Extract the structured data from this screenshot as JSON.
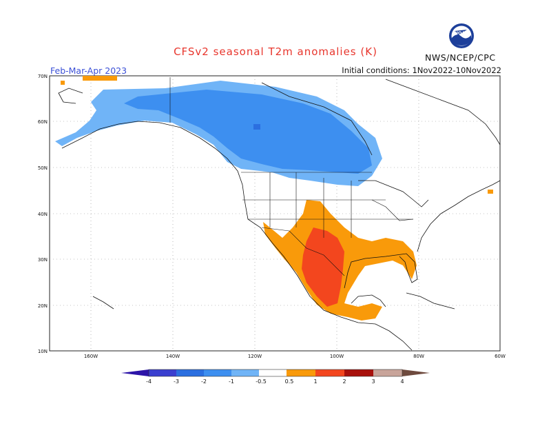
{
  "header": {
    "title": "CFSv2 seasonal T2m anomalies (K)",
    "season": "Feb-Mar-Apr 2023",
    "initial_conditions": "Initial conditions: 1Nov2022-10Nov2022",
    "agency": "NWS/NCEP/CPC",
    "logo_text": "NOAA"
  },
  "map": {
    "lat_labels": [
      "70N",
      "60N",
      "50N",
      "40N",
      "30N",
      "20N",
      "10N"
    ],
    "lon_labels": [
      "160W",
      "140W",
      "120W",
      "100W",
      "80W",
      "60W"
    ]
  },
  "legend": {
    "labels": [
      "-4",
      "-3",
      "-2",
      "-1",
      "-0.5",
      "0.5",
      "1",
      "2",
      "3",
      "4"
    ],
    "colors": [
      "#2c14a8",
      "#3a3fcf",
      "#2b6fe0",
      "#3d8ff0",
      "#70b4f7",
      "#ffffff",
      "#f99a0a",
      "#f3461e",
      "#a8100c",
      "#c8a49a",
      "#6e4a3e"
    ]
  }
}
